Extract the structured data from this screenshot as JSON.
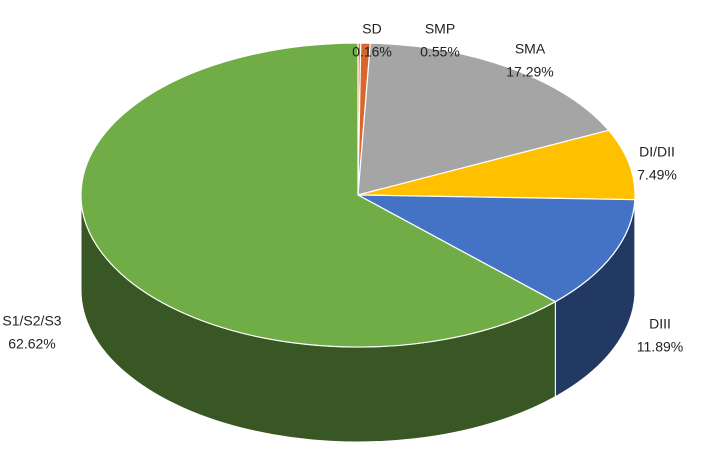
{
  "chart_data": {
    "type": "pie",
    "categories": [
      "SD",
      "SMP",
      "SMA",
      "DI/DII",
      "DIII",
      "S1/S2/S3"
    ],
    "values": [
      0.16,
      0.55,
      17.29,
      7.49,
      11.89,
      62.62
    ],
    "value_labels": [
      "0.16%",
      "0.55%",
      "17.29%",
      "7.49%",
      "11.89%",
      "62.62%"
    ],
    "colors": [
      "#ed7d31",
      "#d9662a",
      "#a5a5a5",
      "#ffc000",
      "#4472c4",
      "#70ad47"
    ]
  }
}
